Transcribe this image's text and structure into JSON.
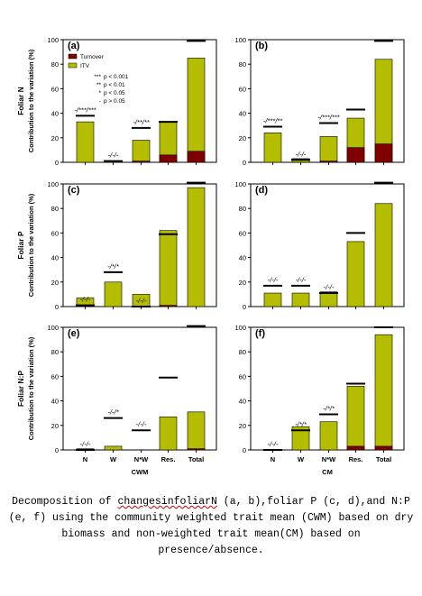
{
  "legend": {
    "turnover_label": "Turnover",
    "itv_label": "ITV",
    "sig_lines": [
      "*** p < 0.001",
      "** p < 0.01",
      "* p < 0.05",
      "- p > 0.05"
    ]
  },
  "row_labels": [
    {
      "title": "Foliar N",
      "sub": "Contribution to the variation (%)"
    },
    {
      "title": "Foliar P",
      "sub": "Contribution to the variation (%)"
    },
    {
      "title": "Foliar N:P",
      "sub": "Contribution to the variation (%)"
    }
  ],
  "column_labels": [
    "CWM",
    "CM"
  ],
  "colors": {
    "turnover": "#800000",
    "itv": "#b5bd00"
  },
  "chart_data": [
    {
      "type": "bar",
      "panel": "(a)",
      "categories": [
        "N",
        "W",
        "N*W",
        "Res.",
        "Total"
      ],
      "ylim": [
        0,
        100
      ],
      "yticks": [
        0,
        20,
        40,
        60,
        80,
        100
      ],
      "series": [
        {
          "name": "Turnover",
          "values": [
            0,
            0,
            1,
            6,
            9
          ]
        },
        {
          "name": "ITV",
          "values": [
            33,
            1,
            17,
            27,
            76
          ]
        }
      ],
      "total_lines": [
        38,
        1,
        28,
        33,
        99
      ],
      "sig": [
        "-/***/***",
        "-/-/-",
        "-/**/**",
        "",
        ""
      ]
    },
    {
      "type": "bar",
      "panel": "(b)",
      "categories": [
        "N",
        "W",
        "N*W",
        "Res.",
        "Total"
      ],
      "ylim": [
        0,
        100
      ],
      "yticks": [
        0,
        20,
        40,
        60,
        80,
        100
      ],
      "series": [
        {
          "name": "Turnover",
          "values": [
            0,
            0,
            1,
            12,
            15
          ]
        },
        {
          "name": "ITV",
          "values": [
            24,
            3,
            20,
            24,
            69
          ]
        }
      ],
      "total_lines": [
        29,
        2,
        32,
        43,
        99
      ],
      "sig": [
        "-/***/**",
        "-/-/-",
        "-/***/***",
        "",
        ""
      ]
    },
    {
      "type": "bar",
      "panel": "(c)",
      "categories": [
        "N",
        "W",
        "N*W",
        "Res.",
        "Total"
      ],
      "ylim": [
        0,
        100
      ],
      "yticks": [
        0,
        20,
        40,
        60,
        80,
        100
      ],
      "series": [
        {
          "name": "Turnover",
          "values": [
            1,
            0,
            0,
            1,
            0
          ]
        },
        {
          "name": "ITV",
          "values": [
            6,
            20,
            10,
            61,
            97
          ]
        }
      ],
      "total_lines": [
        1,
        28,
        0,
        59,
        101
      ],
      "sig": [
        "-/-/-",
        "-/*/*",
        "-/-/-",
        "",
        ""
      ]
    },
    {
      "type": "bar",
      "panel": "(d)",
      "categories": [
        "N",
        "W",
        "N*W",
        "Res.",
        "Total"
      ],
      "ylim": [
        0,
        100
      ],
      "yticks": [
        0,
        20,
        40,
        60,
        80,
        100
      ],
      "series": [
        {
          "name": "Turnover",
          "values": [
            0,
            0,
            0,
            0,
            0
          ]
        },
        {
          "name": "ITV",
          "values": [
            11,
            11,
            12,
            53,
            84
          ]
        }
      ],
      "total_lines": [
        17,
        17,
        11,
        60,
        101
      ],
      "sig": [
        "-/-/-",
        "-/-/-",
        "-/-/-",
        "",
        ""
      ]
    },
    {
      "type": "bar",
      "panel": "(e)",
      "categories": [
        "N",
        "W",
        "N*W",
        "Res.",
        "Total"
      ],
      "ylim": [
        0,
        100
      ],
      "yticks": [
        0,
        20,
        40,
        60,
        80,
        100
      ],
      "series": [
        {
          "name": "Turnover",
          "values": [
            0,
            0,
            0,
            0,
            1
          ]
        },
        {
          "name": "ITV",
          "values": [
            1,
            3,
            0,
            27,
            30
          ]
        }
      ],
      "total_lines": [
        0,
        26,
        16,
        59,
        101
      ],
      "sig": [
        "-/-/-",
        "-/-/*",
        "-/-/-",
        "",
        ""
      ]
    },
    {
      "type": "bar",
      "panel": "(f)",
      "categories": [
        "N",
        "W",
        "N*W",
        "Res.",
        "Total"
      ],
      "ylim": [
        0,
        100
      ],
      "yticks": [
        0,
        20,
        40,
        60,
        80,
        100
      ],
      "series": [
        {
          "name": "Turnover",
          "values": [
            0,
            0,
            0,
            3,
            3
          ]
        },
        {
          "name": "ITV",
          "values": [
            0,
            19,
            23,
            49,
            91
          ]
        }
      ],
      "total_lines": [
        0,
        16,
        29,
        54,
        100
      ],
      "sig": [
        "-/-/-",
        "-/*/*",
        "-/*/*",
        "",
        ""
      ]
    }
  ],
  "caption": {
    "part1": "Decomposition of ",
    "squig": "changesinfoliarN",
    "part2": " (a, b),foliar P (c, d),and N:P (e, f) using the community weighted trait mean (CWM) based on dry biomass and non-weighted trait mean(CM) based on presence/absence."
  }
}
